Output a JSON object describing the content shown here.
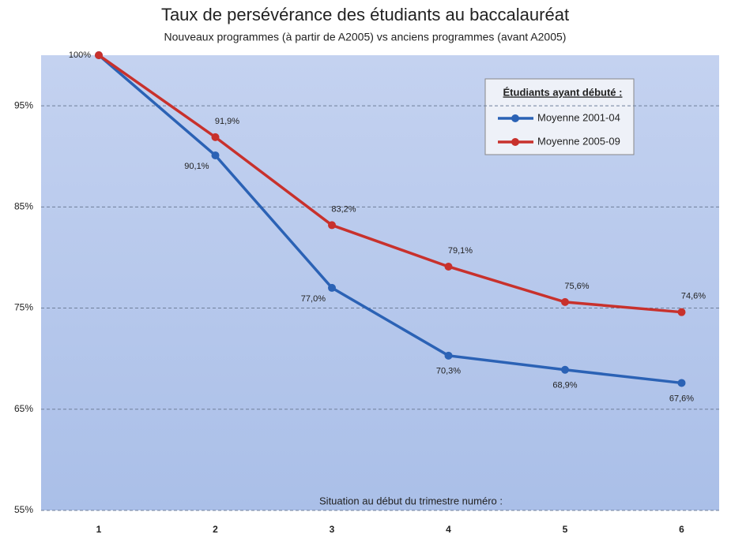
{
  "chart_data": {
    "type": "line",
    "title": "Taux de persévérance des étudiants au baccalauréat",
    "subtitle": "Nouveaux programmes (à partir de A2005) vs anciens programmes (avant A2005)",
    "x_label": "Situation au début du trimestre numéro :",
    "legend_title": "Étudiants ayant débuté :",
    "legend_position": "upper right",
    "categories": [
      "1",
      "2",
      "3",
      "4",
      "5",
      "6"
    ],
    "series": [
      {
        "name": "Moyenne 2001-04",
        "color": "#2b62b5",
        "values": [
          100,
          90.1,
          77.0,
          70.3,
          68.9,
          67.6
        ],
        "value_labels": [
          "100%",
          "90,1%",
          "77,0%",
          "70,3%",
          "68,9%",
          "67,6%"
        ]
      },
      {
        "name": "Moyenne 2005-09",
        "color": "#c8312c",
        "values": [
          100,
          91.9,
          83.2,
          79.1,
          75.6,
          74.6
        ],
        "value_labels": [
          null,
          "91,9%",
          "83,2%",
          "79,1%",
          "75,6%",
          "74,6%"
        ]
      }
    ],
    "ylim": [
      55,
      100
    ],
    "yticks": [
      {
        "value": 55,
        "label": "55%"
      },
      {
        "value": 65,
        "label": "65%"
      },
      {
        "value": 75,
        "label": "75%"
      },
      {
        "value": 85,
        "label": "85%"
      },
      {
        "value": 95,
        "label": "95%"
      }
    ],
    "grid": true
  }
}
